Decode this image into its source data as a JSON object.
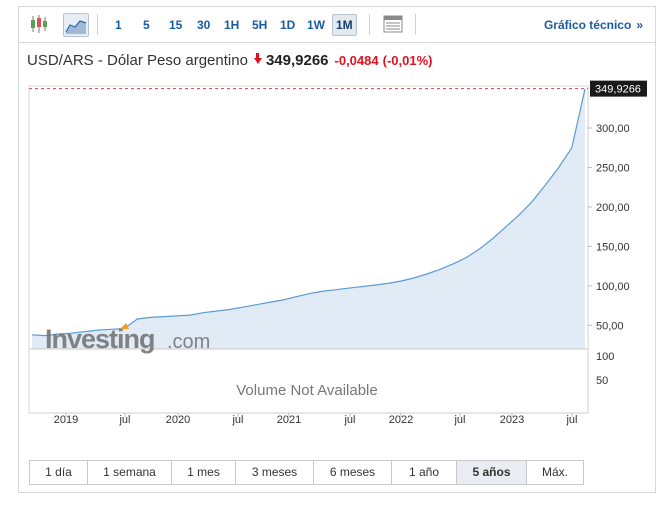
{
  "toolbar": {
    "chart_type_icons": [
      "candlestick-icon",
      "area-chart-icon"
    ],
    "timeframes": [
      "1",
      "5",
      "15",
      "30",
      "1H",
      "5H",
      "1D",
      "1W",
      "1M"
    ],
    "active_timeframe": "1M",
    "table_icon": "table-icon",
    "technical_link": "Gráfico técnico",
    "technical_chevron": "»"
  },
  "header": {
    "instrument": "USD/ARS - Dólar Peso argentino",
    "price": "349,9266",
    "change": "-0,0484",
    "change_pct": "(-0,01%)",
    "direction_icon": "down-arrow-icon"
  },
  "watermark": {
    "brand": "Investing",
    "suffix": ".com"
  },
  "volume_panel": {
    "message": "Volume Not Available",
    "ticks": [
      "100",
      "50"
    ]
  },
  "range_buttons": [
    "1 día",
    "1 semana",
    "1 mes",
    "3 meses",
    "6 meses",
    "1 año",
    "5 años",
    "Máx."
  ],
  "active_range": "5 años",
  "colors": {
    "line": "#5b9bd5",
    "area": "#e1ebf5",
    "negative": "#e0111e",
    "link": "#1b5a9e",
    "price_label_bg": "#1a1a1a"
  },
  "chart_data": {
    "type": "area",
    "x_tick_labels": [
      "2019",
      "jul",
      "2020",
      "jul",
      "2021",
      "jul",
      "2022",
      "jul",
      "2023",
      "jul"
    ],
    "y_tick_labels": [
      "300,00",
      "250,00",
      "200,00",
      "150,00",
      "100,00",
      "50,00"
    ],
    "y_ticks": [
      300,
      250,
      200,
      150,
      100,
      50
    ],
    "ylim": [
      20,
      352
    ],
    "last_value_label": "349,9266",
    "last_value": 349.9266,
    "series": [
      {
        "values": [
          38,
          37,
          39,
          40,
          42,
          44,
          45,
          46,
          58,
          60,
          61,
          62,
          63,
          66,
          68,
          70,
          73,
          76,
          79,
          82,
          86,
          90,
          93,
          95,
          97,
          99,
          101,
          103,
          106,
          110,
          115,
          121,
          128,
          136,
          147,
          160,
          175,
          190,
          207,
          228,
          250,
          275,
          349.9
        ]
      }
    ]
  }
}
